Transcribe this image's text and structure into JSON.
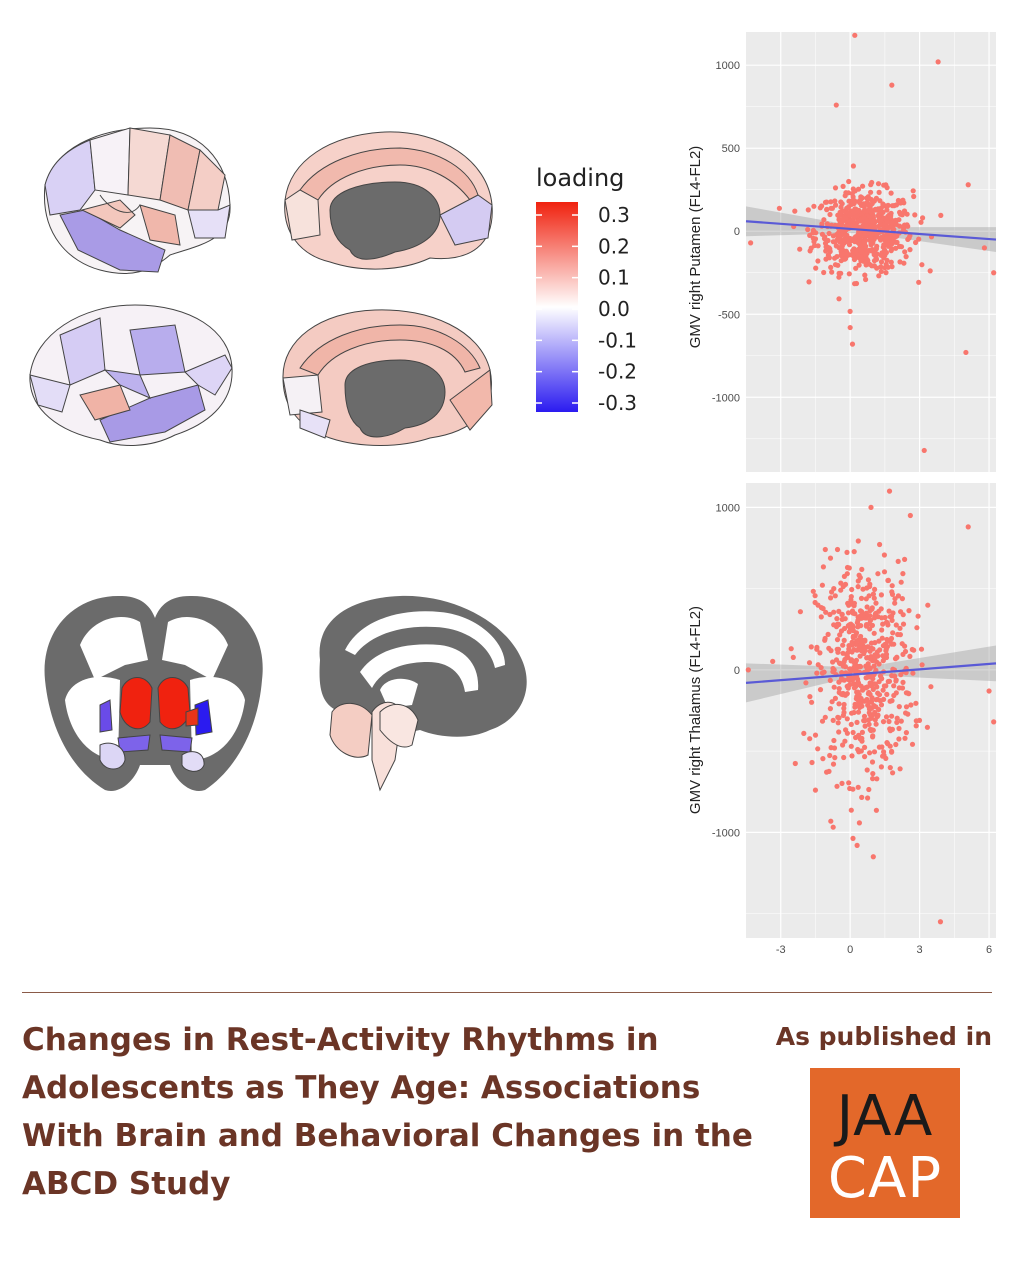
{
  "legend": {
    "title": "loading",
    "ticks": [
      "0.3",
      "0.2",
      "0.1",
      "0.0",
      "-0.1",
      "-0.2",
      "-0.3"
    ],
    "colors": {
      "high": "#f0220f",
      "mid": "#ffffff",
      "low": "#2b1bf0"
    }
  },
  "brain": {
    "medial_color": "#6b6b6b",
    "outline_color": "#444444"
  },
  "chart_data": [
    {
      "type": "scatter",
      "title": "",
      "xlabel": "",
      "ylabel": "GMV right Putamen (FL4-FL2)",
      "xlim": [
        -4.5,
        6.3
      ],
      "ylim": [
        -1450,
        1200
      ],
      "y_ticks": [
        "1000",
        "500",
        "0",
        "-500",
        "-1000"
      ],
      "x_ticks": [],
      "grid": true,
      "point_color": "#f8766d",
      "fit_line_color": "#5a5ad6",
      "fit_line": {
        "x": [
          -4.5,
          6.3
        ],
        "y": [
          60,
          -50
        ]
      },
      "confidence_band": {
        "x": [
          -4.5,
          0.5,
          6.3
        ],
        "upper": [
          150,
          25,
          25
        ],
        "lower": [
          -30,
          -10,
          -125
        ]
      },
      "n_points": 600,
      "notable_points": [
        [
          0.2,
          1180
        ],
        [
          3.8,
          1020
        ],
        [
          1.8,
          880
        ],
        [
          -0.6,
          760
        ],
        [
          5.1,
          280
        ],
        [
          5.8,
          -100
        ],
        [
          6.2,
          -250
        ],
        [
          5.0,
          -730
        ],
        [
          3.2,
          -1320
        ],
        [
          0.0,
          -580
        ],
        [
          0.1,
          -680
        ],
        [
          -4.3,
          -70
        ]
      ]
    },
    {
      "type": "scatter",
      "title": "",
      "xlabel": "",
      "ylabel": "GMV right Thalamus (FL4-FL2)",
      "xlim": [
        -4.5,
        6.3
      ],
      "ylim": [
        -1650,
        1150
      ],
      "y_ticks": [
        "1000",
        "0",
        "-1000"
      ],
      "x_ticks": [
        "-3",
        "0",
        "3",
        "6"
      ],
      "grid": true,
      "point_color": "#f8766d",
      "fit_line_color": "#5a5ad6",
      "fit_line": {
        "x": [
          -4.5,
          6.3
        ],
        "y": [
          -80,
          40
        ]
      },
      "confidence_band": {
        "x": [
          -4.5,
          0.5,
          6.3
        ],
        "upper": [
          40,
          15,
          150
        ],
        "lower": [
          -200,
          -30,
          -70
        ]
      },
      "n_points": 600,
      "notable_points": [
        [
          1.7,
          1100
        ],
        [
          0.9,
          1000
        ],
        [
          2.6,
          950
        ],
        [
          5.1,
          880
        ],
        [
          6.2,
          -320
        ],
        [
          -4.4,
          0
        ],
        [
          3.9,
          -1550
        ],
        [
          1.0,
          -1150
        ],
        [
          0.3,
          -1080
        ],
        [
          -1.5,
          -740
        ],
        [
          6.0,
          -130
        ]
      ]
    }
  ],
  "article": {
    "title": "Changes in Rest-Activity Rhythms in Adolescents as They Age: Associations With Brain and Behavioral Changes in the ABCD Study",
    "published_label": "As published in",
    "journal_line1": "JAA",
    "journal_line2": "CAP"
  }
}
